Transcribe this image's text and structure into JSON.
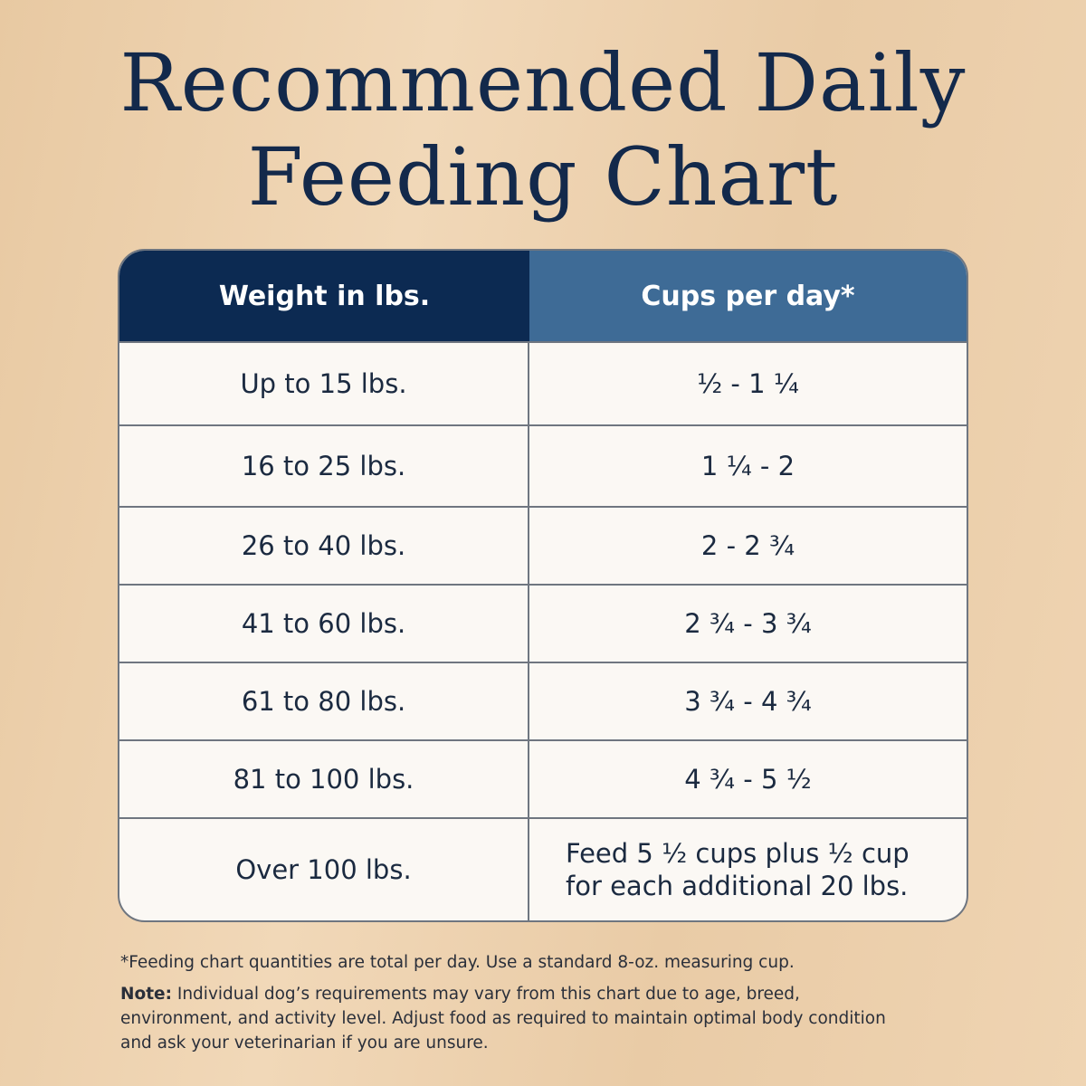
{
  "header": {
    "title_lines": [
      "Recommended Daily",
      "Feeding Chart"
    ]
  },
  "table": {
    "columns": [
      "Weight in lbs.",
      "Cups per day*"
    ],
    "rows": [
      [
        "Up to 15 lbs.",
        "½ - 1 ¼"
      ],
      [
        "16 to 25 lbs.",
        "1 ¼ - 2"
      ],
      [
        "26 to 40 lbs.",
        "2 - 2 ¾"
      ],
      [
        "41 to 60 lbs.",
        "2 ¾ - 3 ¾"
      ],
      [
        "61 to 80 lbs.",
        "3 ¾ - 4 ¾"
      ],
      [
        "81 to 100 lbs.",
        "4 ¾ - 5 ½"
      ],
      [
        "Over 100 lbs.",
        "Feed 5 ½ cups plus ½ cup for each additional 20 lbs."
      ]
    ]
  },
  "footnotes": {
    "asterisk": "*Feeding chart quantities are total per day. Use a standard 8-oz. measuring cup.",
    "note_label": "Note:",
    "note_text": "Individual dog’s requirements may vary from this chart due to age, breed, environment, and activity level. Adjust food as required to maintain optimal body condition and ask your veterinarian if you are unsure."
  }
}
